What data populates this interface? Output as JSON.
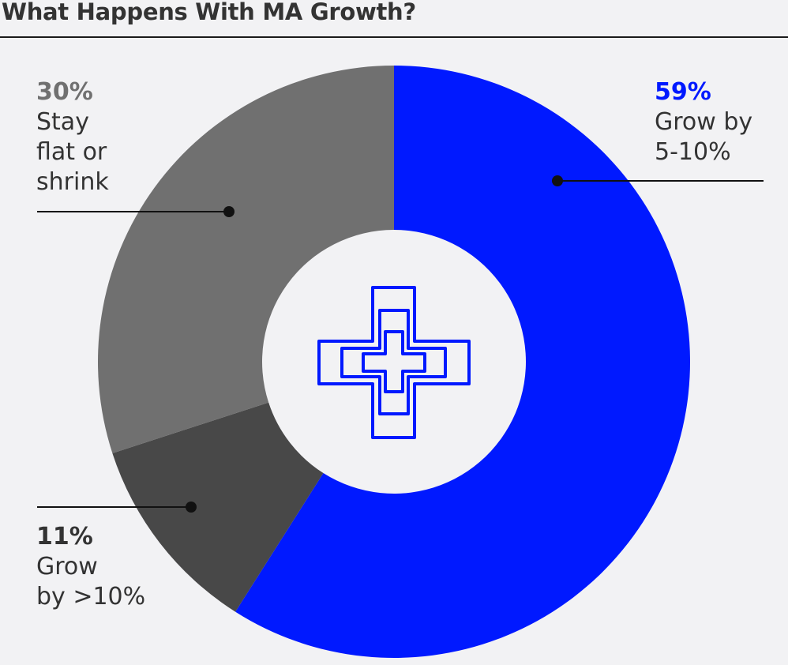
{
  "chart_data": {
    "type": "pie",
    "variant": "donut",
    "title": "What Happens With MA Growth?",
    "slices": [
      {
        "label": "Grow by 5-10%",
        "label_lines": [
          "Grow by",
          "5-10%"
        ],
        "value": 59,
        "value_label": "59%",
        "color": "#0019ff"
      },
      {
        "label": "Grow by >10%",
        "label_lines": [
          "Grow",
          "by >10%"
        ],
        "value": 11,
        "value_label": "11%",
        "color": "#484848"
      },
      {
        "label": "Stay flat or shrink",
        "label_lines": [
          "Stay",
          "flat or",
          "shrink"
        ],
        "value": 30,
        "value_label": "30%",
        "color": "#707070"
      }
    ],
    "center_icon": "medical-cross-icon",
    "pct_colors": [
      "#0019ff",
      "#333333",
      "#707070"
    ]
  }
}
